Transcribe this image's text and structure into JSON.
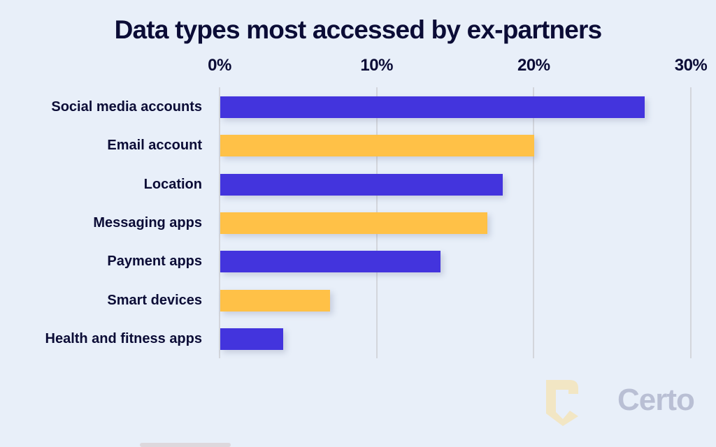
{
  "chart_data": {
    "type": "bar",
    "orientation": "horizontal",
    "title": "Data types most accessed by ex-partners",
    "xlabel": "",
    "ylabel": "",
    "xlim": [
      0,
      30
    ],
    "x_ticks": [
      "0%",
      "10%",
      "20%",
      "30%"
    ],
    "grid": true,
    "legend": null,
    "categories": [
      "Social media accounts",
      "Email account",
      "Location",
      "Messaging apps",
      "Payment apps",
      "Smart devices",
      "Health and fitness apps"
    ],
    "values": [
      27,
      20,
      18,
      17,
      14,
      7,
      4
    ],
    "unit": "%",
    "bar_colors": [
      "#4334dd",
      "#ffc147",
      "#4334dd",
      "#ffc147",
      "#4334dd",
      "#ffc147",
      "#4334dd"
    ]
  },
  "branding": {
    "logo_text": "Certo",
    "logo_icon": "shield-c-icon",
    "logo_icon_color": "#f2e6c4",
    "logo_text_color": "#b9bfd4"
  },
  "colors": {
    "background": "#e8eff9",
    "primary": "#4334dd",
    "accent": "#ffc147",
    "text": "#0b0c36"
  }
}
